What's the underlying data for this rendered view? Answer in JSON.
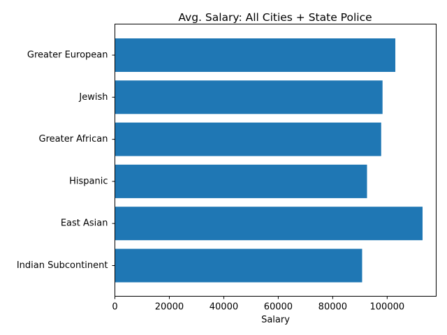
{
  "chart_data": {
    "type": "bar",
    "orientation": "horizontal",
    "title": "Avg. Salary: All Cities + State Police",
    "xlabel": "Salary",
    "ylabel": "",
    "categories": [
      "Greater European",
      "Jewish",
      "Greater African",
      "Hispanic",
      "East Asian",
      "Indian Subcontinent"
    ],
    "values": [
      103000,
      98300,
      97800,
      92600,
      113000,
      90800
    ],
    "xlim": [
      0,
      118000
    ],
    "xticks": [
      0,
      20000,
      40000,
      60000,
      80000,
      100000
    ],
    "xtick_labels": [
      "0",
      "20000",
      "40000",
      "60000",
      "80000",
      "100000"
    ],
    "bar_color": "#1f77b4",
    "grid": false,
    "legend": "none"
  }
}
